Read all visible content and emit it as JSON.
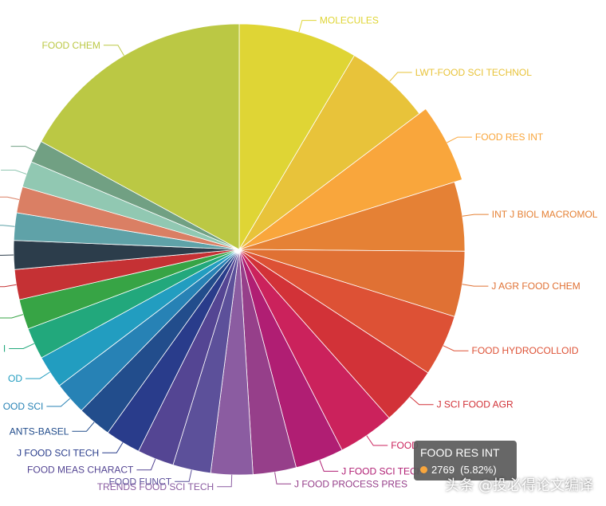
{
  "chart_data": {
    "type": "pie",
    "slices": [
      {
        "label": "MOLECULES",
        "value": 9.1,
        "color": "#dfd535"
      },
      {
        "label": "LWT-FOOD SCI TECHNOL",
        "value": 6.6,
        "color": "#e8c33a"
      },
      {
        "label": "FOOD RES INT",
        "value": 5.82,
        "color": "#f9a63c",
        "highlighted": true
      },
      {
        "label": "INT J BIOL MACROMOL",
        "value": 5.3,
        "color": "#e58135"
      },
      {
        "label": "J AGR FOOD CHEM",
        "value": 5.0,
        "color": "#e07134"
      },
      {
        "label": "FOOD HYDROCOLLOID",
        "value": 4.7,
        "color": "#dd5135"
      },
      {
        "label": "J SCI FOOD AGR",
        "value": 4.5,
        "color": "#d23238"
      },
      {
        "label": "FOOD",
        "value": 4.3,
        "color": "#cb225c"
      },
      {
        "label": "J FOOD SCI TECH",
        "value": 3.7,
        "color": "#b01e73"
      },
      {
        "label": "J FOOD PROCESS PRES",
        "value": 3.3,
        "color": "#963f8a"
      },
      {
        "label": "TRENDS FOOD SCI TECH",
        "value": 3.2,
        "color": "#8b5ca1"
      },
      {
        "label": "FOOD FUNCT",
        "value": 2.9,
        "color": "#5c509a"
      },
      {
        "label": "FOOD MEAS CHARACT",
        "value": 2.8,
        "color": "#544593"
      },
      {
        "label": "J FOOD SCI TECH",
        "value": 2.7,
        "color": "#293c8b"
      },
      {
        "label": "ANTS-BASEL",
        "value": 2.6,
        "color": "#224d8c"
      },
      {
        "label": "OOD SCI",
        "value": 2.5,
        "color": "#2782b5"
      },
      {
        "label": "OD",
        "value": 2.5,
        "color": "#229dc0"
      },
      {
        "label": "I",
        "value": 2.4,
        "color": "#22a87c"
      },
      {
        "label": "",
        "value": 2.3,
        "color": "#37a445"
      },
      {
        "label": "",
        "value": 2.3,
        "color": "#c53134"
      },
      {
        "label": "",
        "value": 2.2,
        "color": "#2c3d4b"
      },
      {
        "label": "",
        "value": 2.1,
        "color": "#5fa2a8"
      },
      {
        "label": "",
        "value": 2.0,
        "color": "#da7f64"
      },
      {
        "label": "",
        "value": 2.0,
        "color": "#91c8b2"
      },
      {
        "label": "",
        "value": 1.7,
        "color": "#71a083"
      },
      {
        "label": "FOOD CHEM",
        "value": 18.2,
        "color": "#bbc844"
      }
    ]
  },
  "tooltip": {
    "title": "FOOD RES INT",
    "count": "2769",
    "percent": "(5.82%)",
    "dot_color": "#f9a63c"
  },
  "watermark": "头条 @投必得论文编译"
}
